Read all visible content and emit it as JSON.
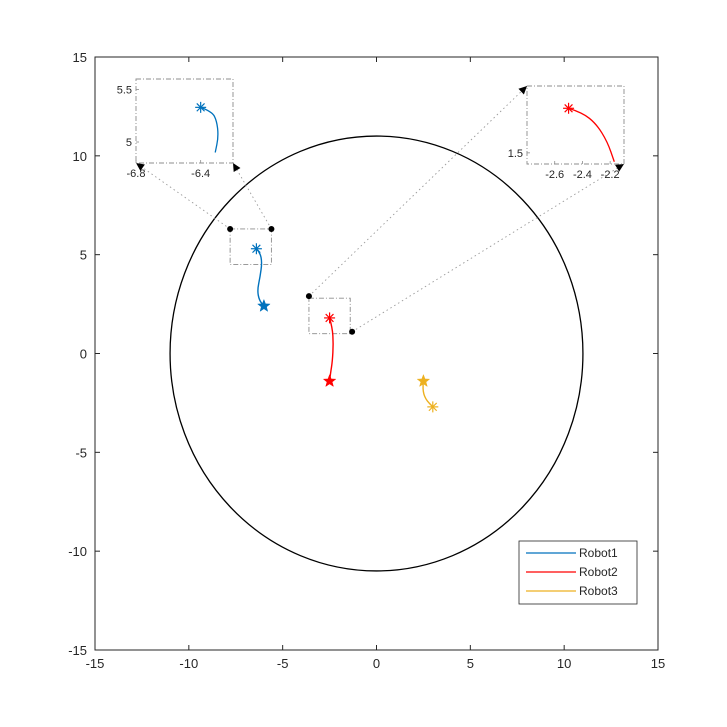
{
  "chart_data": {
    "type": "line",
    "xlim": [
      -15,
      15
    ],
    "ylim": [
      -15,
      15
    ],
    "x_ticks": [
      -15,
      -10,
      -5,
      0,
      5,
      10,
      15
    ],
    "y_ticks": [
      -15,
      -10,
      -5,
      0,
      5,
      10,
      15
    ],
    "grid": false,
    "legend_position": "bottom-right",
    "boundary_circle": {
      "center": [
        0,
        0
      ],
      "radius": 11
    },
    "series": [
      {
        "name": "Robot1",
        "color": "#0072BD",
        "points": [
          [
            -6.4,
            5.3
          ],
          [
            -6.2,
            5.1
          ],
          [
            -6.1,
            4.6
          ],
          [
            -6.2,
            3.9
          ],
          [
            -6.35,
            3.2
          ],
          [
            -6.25,
            2.7
          ],
          [
            -6.0,
            2.4
          ]
        ],
        "start": [
          -6.4,
          5.3
        ],
        "goal": [
          -6.0,
          2.4
        ]
      },
      {
        "name": "Robot2",
        "color": "#FF0000",
        "points": [
          [
            -2.5,
            1.8
          ],
          [
            -2.35,
            1.3
          ],
          [
            -2.3,
            0.5
          ],
          [
            -2.35,
            -0.4
          ],
          [
            -2.45,
            -1.0
          ],
          [
            -2.5,
            -1.4
          ]
        ],
        "start": [
          -2.5,
          1.8
        ],
        "goal": [
          -2.5,
          -1.4
        ]
      },
      {
        "name": "Robot3",
        "color": "#EDB120",
        "points": [
          [
            2.5,
            -1.4
          ],
          [
            2.45,
            -1.8
          ],
          [
            2.6,
            -2.3
          ],
          [
            3.0,
            -2.7
          ]
        ],
        "start": [
          3.0,
          -2.7
        ],
        "goal": [
          2.5,
          -1.4
        ]
      }
    ],
    "zoom_boxes": [
      {
        "xlim": [
          -7.8,
          -5.6
        ],
        "ylim": [
          4.5,
          6.3
        ]
      },
      {
        "xlim": [
          -3.6,
          -1.4
        ],
        "ylim": [
          1.0,
          2.8
        ]
      }
    ],
    "insets": [
      {
        "series_index": 0,
        "xlim": [
          -6.8,
          -6.2
        ],
        "ylim": [
          4.8,
          5.6
        ],
        "x_ticks": [
          "-6.8",
          "-6.4"
        ],
        "y_ticks": [
          "5.5",
          "5"
        ],
        "points": [
          [
            -6.4,
            5.33
          ],
          [
            -6.33,
            5.29
          ],
          [
            -6.3,
            5.2
          ],
          [
            -6.29,
            5.05
          ],
          [
            -6.31,
            4.9
          ]
        ]
      },
      {
        "series_index": 1,
        "xlim": [
          -2.8,
          -2.1
        ],
        "ylim": [
          1.45,
          1.8
        ],
        "x_ticks": [
          "-2.6",
          "-2.4",
          "-2.2"
        ],
        "y_ticks": [
          "1.5"
        ],
        "points": [
          [
            -2.5,
            1.7
          ],
          [
            -2.4,
            1.68
          ],
          [
            -2.3,
            1.63
          ],
          [
            -2.22,
            1.55
          ],
          [
            -2.17,
            1.46
          ]
        ]
      }
    ]
  }
}
